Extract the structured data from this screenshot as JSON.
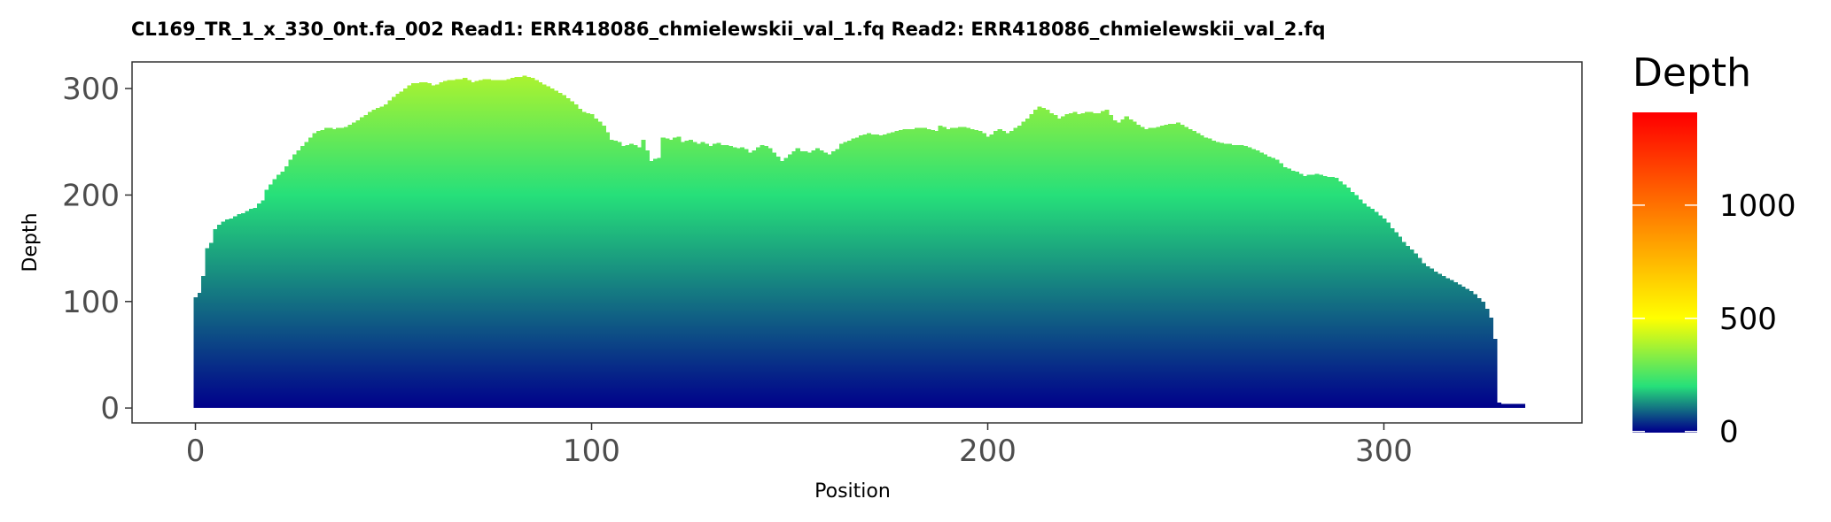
{
  "chart_data": {
    "type": "bar",
    "title": "CL169_TR_1_x_330_0nt.fa_002   Read1: ERR418086_chmielewskii_val_1.fq   Read2: ERR418086_chmielewskii_val_2.fq",
    "xlabel": "Position",
    "ylabel": "Depth",
    "xlim": [
      -16,
      350
    ],
    "ylim": [
      -14,
      325
    ],
    "x_ticks": [
      0,
      100,
      200,
      300
    ],
    "y_ticks": [
      0,
      100,
      200,
      300
    ],
    "grid": false,
    "legend": {
      "title": "Depth",
      "position": "right",
      "type": "colorbar",
      "limits": [
        -5,
        1410
      ],
      "breaks": [
        0,
        500,
        1000
      ],
      "colors": [
        {
          "value": 0,
          "color": "#00008b"
        },
        {
          "value": 200,
          "color": "#26e07a"
        },
        {
          "value": 500,
          "color": "#ffff00"
        },
        {
          "value": 1400,
          "color": "#ff0000"
        }
      ]
    },
    "profile": {
      "x": [
        0,
        1,
        2,
        3,
        4,
        5,
        6,
        7,
        10,
        13,
        15,
        17,
        18,
        20,
        22,
        25,
        28,
        30,
        33,
        35,
        38,
        40,
        43,
        45,
        48,
        50,
        53,
        55,
        58,
        60,
        63,
        65,
        68,
        70,
        73,
        75,
        78,
        80,
        83,
        85,
        88,
        90,
        93,
        95,
        98,
        100,
        103,
        105,
        107,
        108,
        110,
        112,
        113,
        115,
        117,
        118,
        120,
        122,
        123,
        125,
        127,
        128,
        130,
        132,
        133,
        135,
        137,
        138,
        140,
        143,
        145,
        147,
        148,
        150,
        152,
        153,
        155,
        157,
        158,
        160,
        162,
        163,
        165,
        167,
        168,
        170,
        173,
        175,
        178,
        180,
        183,
        185,
        187,
        188,
        190,
        193,
        195,
        198,
        200,
        203,
        205,
        208,
        210,
        212,
        213,
        215,
        218,
        220,
        222,
        223,
        225,
        228,
        230,
        232,
        233,
        235,
        238,
        240,
        243,
        245,
        248,
        250,
        253,
        255,
        258,
        260,
        263,
        265,
        268,
        270,
        273,
        275,
        278,
        280,
        283,
        285,
        288,
        290,
        293,
        295,
        298,
        300,
        303,
        305,
        308,
        310,
        313,
        315,
        318,
        320,
        322,
        325,
        327,
        328,
        329,
        330,
        331,
        332,
        333,
        334,
        335
      ],
      "y": [
        104,
        108,
        124,
        150,
        155,
        168,
        172,
        175,
        180,
        185,
        188,
        195,
        205,
        215,
        222,
        238,
        250,
        258,
        263,
        262,
        264,
        268,
        275,
        280,
        285,
        292,
        300,
        305,
        306,
        303,
        307,
        308,
        310,
        306,
        309,
        308,
        308,
        310,
        312,
        310,
        304,
        300,
        294,
        288,
        278,
        276,
        265,
        252,
        250,
        246,
        248,
        245,
        252,
        232,
        235,
        254,
        252,
        255,
        250,
        252,
        248,
        250,
        246,
        249,
        247,
        246,
        244,
        245,
        240,
        247,
        244,
        236,
        232,
        238,
        244,
        241,
        240,
        244,
        242,
        238,
        243,
        248,
        251,
        254,
        256,
        258,
        256,
        258,
        261,
        262,
        263,
        262,
        260,
        265,
        262,
        264,
        263,
        260,
        255,
        262,
        258,
        265,
        272,
        280,
        283,
        280,
        272,
        276,
        278,
        276,
        278,
        277,
        280,
        270,
        268,
        274,
        266,
        262,
        264,
        266,
        268,
        264,
        258,
        254,
        250,
        248,
        247,
        246,
        242,
        238,
        233,
        226,
        222,
        218,
        220,
        218,
        216,
        210,
        200,
        192,
        184,
        178,
        165,
        156,
        145,
        136,
        128,
        124,
        118,
        114,
        110,
        100,
        85,
        65,
        5,
        4,
        4,
        4,
        4,
        4,
        4
      ]
    }
  }
}
